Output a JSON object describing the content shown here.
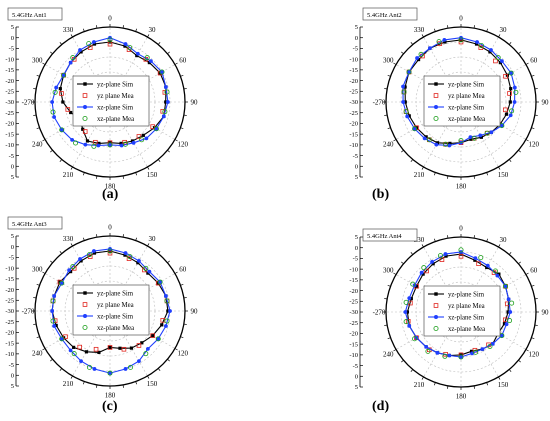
{
  "chart_data": [
    {
      "type": "polar",
      "panel_label": "(a)",
      "tag": "5.4GHz Ant1",
      "radial_ticks": [
        "5",
        "0",
        "-5",
        "-10",
        "-15",
        "-20",
        "-25",
        "-30",
        "-25",
        "-20",
        "-15",
        "-10",
        "-5",
        "0",
        "5"
      ],
      "rlim": [
        -30,
        5
      ],
      "angle_ticks": [
        "0",
        "30",
        "60",
        "90",
        "120",
        "150",
        "180",
        "210",
        "240",
        "-270",
        "300",
        "330"
      ],
      "legend": [
        "yz-plane Sim",
        "yz plane Mea",
        "xz-plane Sim",
        "xz-plane Mea"
      ],
      "series": [
        {
          "name": "yz-plane Sim",
          "angles": [
            0,
            15,
            30,
            45,
            60,
            75,
            90,
            105,
            120,
            135,
            150,
            165,
            180,
            195,
            210,
            225,
            240,
            255,
            270,
            285,
            300,
            315,
            330,
            345
          ],
          "values": [
            -2,
            -3,
            -5,
            -4,
            -3,
            -3,
            -4,
            -4,
            -6,
            -8,
            -9,
            -10,
            -11,
            -10,
            -9,
            -12,
            -14,
            -11,
            -8,
            -6,
            -5,
            -4,
            -3,
            -2
          ]
        },
        {
          "name": "yz plane Mea",
          "angles": [
            0,
            20,
            40,
            60,
            80,
            100,
            120,
            140,
            160,
            180,
            200,
            220,
            240,
            260,
            280,
            300,
            320,
            340
          ],
          "values": [
            -3,
            -4,
            -4,
            -3,
            -4,
            -5,
            -7,
            -9,
            -10,
            -11,
            -10,
            -12,
            -14,
            -10,
            -7,
            -5,
            -4,
            -3
          ]
        },
        {
          "name": "xz-plane Sim",
          "angles": [
            0,
            15,
            30,
            45,
            60,
            75,
            90,
            105,
            120,
            135,
            150,
            165,
            180,
            195,
            210,
            225,
            240,
            255,
            270,
            285,
            300,
            315,
            330,
            345
          ],
          "values": [
            0,
            -2,
            -4,
            -3,
            -2,
            -3,
            -3,
            -4,
            -5,
            -6,
            -8,
            -9,
            -10,
            -9,
            -7,
            -5,
            -4,
            -3,
            -3,
            -4,
            -5,
            -4,
            -2,
            -1
          ]
        },
        {
          "name": "xz-plane Mea",
          "angles": [
            0,
            20,
            40,
            60,
            80,
            100,
            120,
            140,
            160,
            180,
            200,
            220,
            240,
            260,
            280,
            300,
            320,
            340
          ],
          "values": [
            -1,
            -3,
            -3,
            -2,
            -3,
            -4,
            -5,
            -7,
            -9,
            -10,
            -8,
            -5,
            -4,
            -3,
            -4,
            -5,
            -3,
            -1
          ]
        }
      ]
    },
    {
      "type": "polar",
      "panel_label": "(b)",
      "tag": "5.4GHz Ant2",
      "radial_ticks": [
        "5",
        "0",
        "-5",
        "-10",
        "-15",
        "-20",
        "-25",
        "-30",
        "-25",
        "-20",
        "-15",
        "-10",
        "-5",
        "0",
        "5"
      ],
      "rlim": [
        -30,
        5
      ],
      "angle_ticks": [
        "0",
        "30",
        "60",
        "90",
        "120",
        "150",
        "180",
        "210",
        "240",
        "-270",
        "300",
        "330"
      ],
      "legend": [
        "yz-plane Sim",
        "yz plane Mea",
        "xz-plane Sim",
        "xz-plane Mea"
      ],
      "series": [
        {
          "name": "yz-plane Sim",
          "angles": [
            0,
            15,
            30,
            45,
            60,
            75,
            90,
            105,
            120,
            135,
            150,
            165,
            180,
            195,
            210,
            225,
            240,
            255,
            270,
            285,
            300,
            315,
            330,
            345
          ],
          "values": [
            -1,
            -2,
            -3,
            -4,
            -5,
            -6,
            -7,
            -8,
            -9,
            -10,
            -11,
            -12,
            -11,
            -10,
            -8,
            -7,
            -6,
            -5,
            -4,
            -3,
            -2,
            -2,
            -1,
            -1
          ]
        },
        {
          "name": "yz plane Mea",
          "angles": [
            0,
            20,
            40,
            60,
            80,
            100,
            120,
            140,
            160,
            180,
            200,
            220,
            240,
            260,
            280,
            300,
            320,
            340
          ],
          "values": [
            -2,
            -3,
            -5,
            -6,
            -7,
            -9,
            -10,
            -11,
            -12,
            -11,
            -9,
            -7,
            -6,
            -4,
            -3,
            -2,
            -2,
            -1
          ]
        },
        {
          "name": "xz-plane Sim",
          "angles": [
            0,
            15,
            30,
            45,
            60,
            75,
            90,
            105,
            120,
            135,
            150,
            165,
            180,
            195,
            210,
            225,
            240,
            255,
            270,
            285,
            300,
            315,
            330,
            345
          ],
          "values": [
            0,
            -1,
            -2,
            -3,
            -3,
            -4,
            -5,
            -6,
            -8,
            -10,
            -12,
            -13,
            -11,
            -9,
            -7,
            -6,
            -5,
            -4,
            -3,
            -2,
            -2,
            -1,
            -1,
            0
          ]
        },
        {
          "name": "xz-plane Mea",
          "angles": [
            0,
            20,
            40,
            60,
            80,
            100,
            120,
            140,
            160,
            180,
            200,
            220,
            240,
            260,
            280,
            300,
            320,
            340
          ],
          "values": [
            -1,
            -2,
            -3,
            -3,
            -4,
            -6,
            -8,
            -11,
            -12,
            -12,
            -9,
            -7,
            -5,
            -4,
            -3,
            -2,
            -1,
            0
          ]
        }
      ]
    },
    {
      "type": "polar",
      "panel_label": "(c)",
      "tag": "5.4GHz Ant3",
      "radial_ticks": [
        "5",
        "0",
        "-5",
        "-10",
        "-15",
        "-20",
        "-25",
        "-30",
        "-25",
        "-20",
        "-15",
        "-10",
        "-5",
        "0",
        "5"
      ],
      "rlim": [
        -30,
        5
      ],
      "angle_ticks": [
        "0",
        "30",
        "60",
        "90",
        "120",
        "150",
        "180",
        "210",
        "240",
        "-270",
        "300",
        "330"
      ],
      "legend": [
        "yz-plane Sim",
        "yz plane Mea",
        "xz-plane Sim",
        "xz-plane Mea"
      ],
      "series": [
        {
          "name": "yz-plane Sim",
          "angles": [
            0,
            15,
            30,
            45,
            60,
            75,
            90,
            105,
            120,
            135,
            150,
            165,
            180,
            195,
            210,
            225,
            240,
            255,
            270,
            285,
            300,
            315,
            330,
            345
          ],
          "values": [
            -2,
            -3,
            -4,
            -5,
            -4,
            -3,
            -3,
            -5,
            -7,
            -9,
            -10,
            -12,
            -13,
            -10,
            -8,
            -6,
            -5,
            -4,
            -3,
            -3,
            -3,
            -4,
            -3,
            -2
          ]
        },
        {
          "name": "yz plane Mea",
          "angles": [
            0,
            20,
            40,
            60,
            80,
            100,
            120,
            140,
            160,
            180,
            200,
            220,
            240,
            260,
            280,
            300,
            320,
            340
          ],
          "values": [
            -3,
            -4,
            -5,
            -4,
            -3,
            -5,
            -7,
            -9,
            -11,
            -13,
            -11,
            -8,
            -6,
            -4,
            -3,
            -3,
            -4,
            -3
          ]
        },
        {
          "name": "xz-plane Sim",
          "angles": [
            0,
            15,
            30,
            45,
            60,
            75,
            90,
            105,
            120,
            135,
            150,
            165,
            180,
            195,
            210,
            225,
            240,
            255,
            270,
            285,
            300,
            315,
            330,
            345
          ],
          "values": [
            -1,
            -2,
            -3,
            -4,
            -3,
            -3,
            -2,
            -3,
            -4,
            -5,
            -3,
            -2,
            -1,
            -2,
            -3,
            -4,
            -4,
            -3,
            -3,
            -3,
            -4,
            -3,
            -2,
            -1
          ]
        },
        {
          "name": "xz-plane Mea",
          "angles": [
            0,
            20,
            40,
            60,
            80,
            100,
            120,
            140,
            160,
            180,
            200,
            220,
            240,
            260,
            280,
            300,
            320,
            340
          ],
          "values": [
            -2,
            -3,
            -4,
            -3,
            -3,
            -3,
            -4,
            -4,
            -2,
            -1,
            -2,
            -4,
            -4,
            -3,
            -3,
            -4,
            -3,
            -2
          ]
        }
      ]
    },
    {
      "type": "polar",
      "panel_label": "(d)",
      "tag": "5.4GHz Ant4",
      "radial_ticks": [
        "5",
        "0",
        "-5",
        "-10",
        "-15",
        "-20",
        "-25",
        "-30",
        "-25",
        "-20",
        "-15",
        "-10",
        "-5",
        "0",
        "5"
      ],
      "rlim": [
        -30,
        5
      ],
      "angle_ticks": [
        "0",
        "30",
        "60",
        "90",
        "120",
        "150",
        "180",
        "210",
        "240",
        "-270",
        "300",
        "330"
      ],
      "legend": [
        "yz-plane Sim",
        "yz plane Mea",
        "xz-plane Sim",
        "xz-plane Mea"
      ],
      "series": [
        {
          "name": "yz-plane Sim",
          "angles": [
            0,
            15,
            30,
            45,
            60,
            75,
            90,
            105,
            120,
            135,
            150,
            165,
            180,
            195,
            210,
            225,
            240,
            255,
            270,
            285,
            300,
            315,
            330,
            345
          ],
          "values": [
            -3,
            -5,
            -6,
            -5,
            -6,
            -7,
            -8,
            -9,
            -10,
            -9,
            -10,
            -11,
            -10,
            -9,
            -8,
            -7,
            -6,
            -5,
            -5,
            -6,
            -6,
            -5,
            -4,
            -3
          ]
        },
        {
          "name": "yz plane Mea",
          "angles": [
            0,
            20,
            40,
            60,
            80,
            100,
            120,
            140,
            160,
            180,
            200,
            220,
            240,
            260,
            280,
            300,
            320,
            340
          ],
          "values": [
            -4,
            -6,
            -6,
            -6,
            -8,
            -9,
            -10,
            -10,
            -11,
            -10,
            -9,
            -7,
            -6,
            -5,
            -6,
            -6,
            -5,
            -4
          ]
        },
        {
          "name": "xz-plane Sim",
          "angles": [
            0,
            15,
            30,
            45,
            60,
            75,
            90,
            105,
            120,
            135,
            150,
            165,
            180,
            195,
            210,
            225,
            240,
            255,
            270,
            285,
            300,
            315,
            330,
            345
          ],
          "values": [
            -2,
            -4,
            -5,
            -6,
            -6,
            -7,
            -7,
            -8,
            -8,
            -9,
            -10,
            -10,
            -9,
            -9,
            -8,
            -7,
            -6,
            -5,
            -4,
            -5,
            -5,
            -4,
            -3,
            -2
          ]
        },
        {
          "name": "xz-plane Mea",
          "angles": [
            0,
            20,
            40,
            60,
            80,
            100,
            120,
            140,
            160,
            180,
            200,
            220,
            240,
            260,
            280,
            300,
            320,
            340
          ],
          "values": [
            -1,
            -3,
            -5,
            -6,
            -6,
            -7,
            -8,
            -9,
            -10,
            -9,
            -8,
            -6,
            -5,
            -4,
            -4,
            -4,
            -3,
            -2
          ]
        }
      ]
    }
  ],
  "styles": {
    "series_colors": [
      "#000000",
      "#e0261f",
      "#1f3fff",
      "#1a9e1a"
    ],
    "grid_color": "#bdbdbd"
  }
}
